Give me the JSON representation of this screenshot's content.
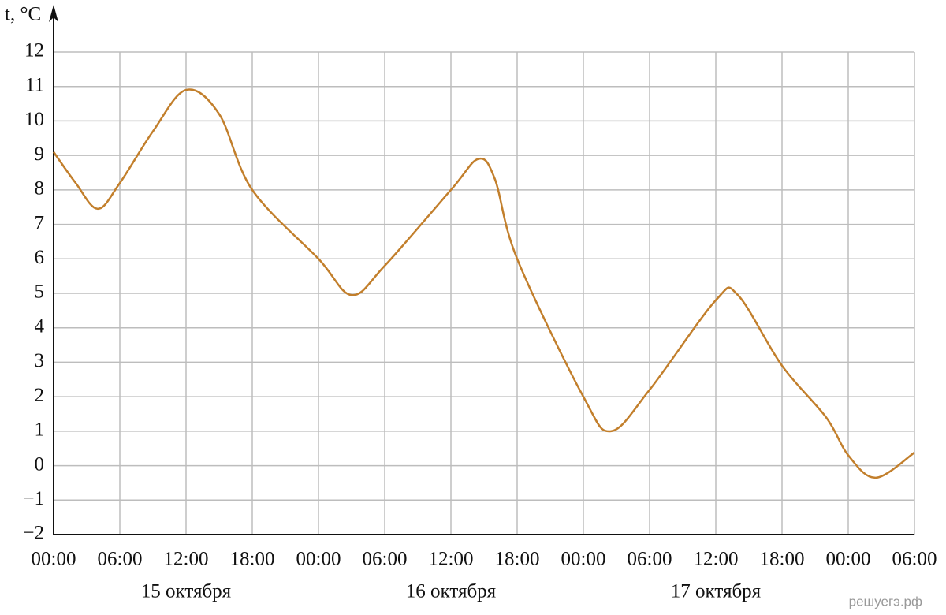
{
  "chart_data": {
    "type": "line",
    "y_label": "t, °C",
    "x": [
      0,
      2,
      4,
      6,
      9,
      12,
      15,
      18,
      24,
      27,
      30,
      36,
      38.5,
      40,
      42,
      48,
      50.5,
      54,
      60,
      62,
      66,
      70,
      72,
      74.5,
      78
    ],
    "series": [
      {
        "color": "#c27f2c",
        "values": [
          9.1,
          8.2,
          7.45,
          8.2,
          9.7,
          10.9,
          10.2,
          8.0,
          6.0,
          4.95,
          5.8,
          8.0,
          8.9,
          8.3,
          6.0,
          2.0,
          1.0,
          2.2,
          4.8,
          4.95,
          2.9,
          1.4,
          0.3,
          -0.35,
          0.38
        ]
      }
    ],
    "xlim": [
      0,
      78
    ],
    "xticks": [
      {
        "value": 0,
        "label": "00:00"
      },
      {
        "value": 6,
        "label": "06:00"
      },
      {
        "value": 12,
        "label": "12:00"
      },
      {
        "value": 18,
        "label": "18:00"
      },
      {
        "value": 24,
        "label": "00:00"
      },
      {
        "value": 30,
        "label": "06:00"
      },
      {
        "value": 36,
        "label": "12:00"
      },
      {
        "value": 42,
        "label": "18:00"
      },
      {
        "value": 48,
        "label": "00:00"
      },
      {
        "value": 54,
        "label": "06:00"
      },
      {
        "value": 60,
        "label": "12:00"
      },
      {
        "value": 66,
        "label": "18:00"
      },
      {
        "value": 72,
        "label": "00:00"
      },
      {
        "value": 78,
        "label": "06:00"
      }
    ],
    "ylim": [
      -2,
      12
    ],
    "yticks": [
      {
        "value": -2,
        "label": "−2"
      },
      {
        "value": -1,
        "label": "−1"
      },
      0,
      1,
      2,
      3,
      4,
      5,
      6,
      7,
      8,
      9,
      10,
      11,
      12
    ],
    "day_labels": [
      "15 октября",
      "16 октября",
      "17 октября"
    ],
    "grid": true,
    "watermark": "решуегэ.рф"
  }
}
